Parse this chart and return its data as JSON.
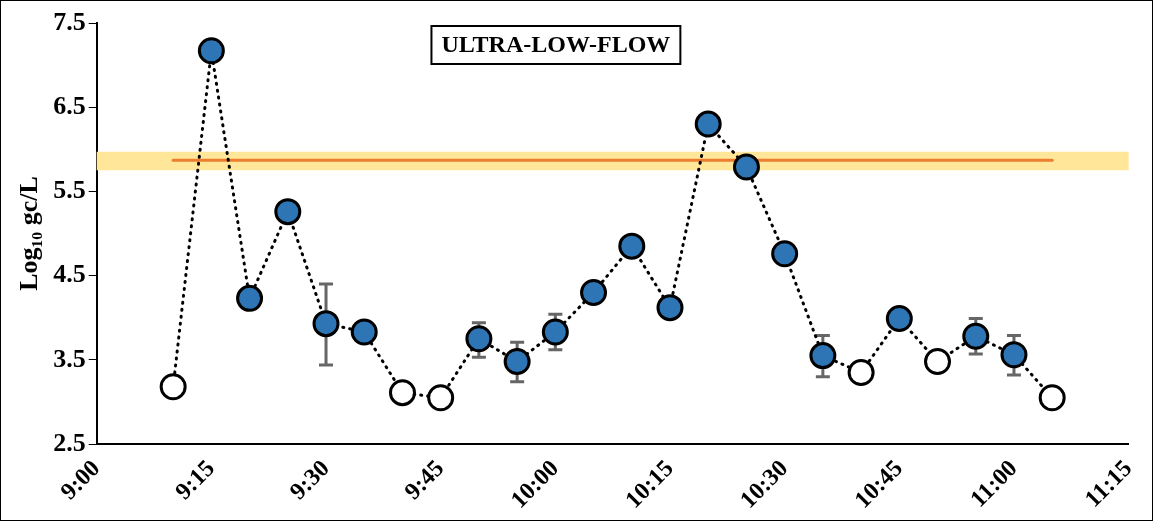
{
  "chart_data": {
    "type": "line",
    "ylabel": "Log₁₀ gc/L",
    "annotations": [
      "ULTRA-LOW-FLOW"
    ],
    "xlim": [
      9,
      11.25
    ],
    "xticks": [
      {
        "value": 9,
        "label": "9:00"
      },
      {
        "value": 9.25,
        "label": "9:15"
      },
      {
        "value": 9.5,
        "label": "9:30"
      },
      {
        "value": 9.75,
        "label": "9:45"
      },
      {
        "value": 10,
        "label": "10:00"
      },
      {
        "value": 10.25,
        "label": "10:15"
      },
      {
        "value": 10.5,
        "label": "10:30"
      },
      {
        "value": 10.75,
        "label": "10:45"
      },
      {
        "value": 11,
        "label": "11:00"
      },
      {
        "value": 11.25,
        "label": "11:15"
      }
    ],
    "ylim": [
      2.5,
      7.5
    ],
    "yticks": [
      2.5,
      3.5,
      4.5,
      5.5,
      6.5,
      7.5
    ],
    "grid": false,
    "legend": false,
    "marker": "circle",
    "line_style": "dotted",
    "bands": [
      {
        "axis": "y",
        "from": 5.75,
        "to": 5.97,
        "color": "#ffe699"
      }
    ],
    "series": [
      {
        "x": [
          9.1667,
          9.25,
          9.3333,
          9.4167,
          9.5,
          9.5833,
          9.6667,
          9.75,
          9.8333,
          9.9167,
          10,
          10.0833,
          10.1667,
          10.25,
          10.3333,
          10.4167,
          10.5,
          10.5833,
          10.6667,
          10.75,
          10.8333,
          10.9167,
          11,
          11.0833
        ],
        "values": [
          3.18,
          7.17,
          4.23,
          5.26,
          3.93,
          3.83,
          3.11,
          3.05,
          3.75,
          3.48,
          3.83,
          4.3,
          4.85,
          4.12,
          6.3,
          5.79,
          4.76,
          3.55,
          3.35,
          3.99,
          3.48,
          3.78,
          3.56,
          3.05
        ],
        "colors": [
          "#ffffff",
          "#2e75b6",
          "#2e75b6",
          "#2e75b6",
          "#2e75b6",
          "#2e75b6",
          "#ffffff",
          "#ffffff",
          "#2e75b6",
          "#2e75b6",
          "#2e75b6",
          "#2e75b6",
          "#2e75b6",
          "#2e75b6",
          "#2e75b6",
          "#2e75b6",
          "#2e75b6",
          "#2e75b6",
          "#ffffff",
          "#2e75b6",
          "#ffffff",
          "#2e75b6",
          "#2e75b6",
          "#ffffff"
        ],
        "errors": [
          null,
          null,
          null,
          null,
          [
            3.44,
            4.4
          ],
          null,
          null,
          null,
          [
            3.53,
            3.94
          ],
          [
            3.24,
            3.71
          ],
          [
            3.62,
            4.04
          ],
          null,
          null,
          null,
          null,
          null,
          null,
          [
            3.3,
            3.79
          ],
          null,
          null,
          null,
          [
            3.57,
            3.99
          ],
          [
            3.32,
            3.79
          ],
          null
        ]
      },
      {
        "color": "#ed7d31",
        "line_style": "solid",
        "marker": "none",
        "x": [
          9.1667,
          11.0833
        ],
        "values": [
          5.87,
          5.87
        ]
      }
    ]
  }
}
